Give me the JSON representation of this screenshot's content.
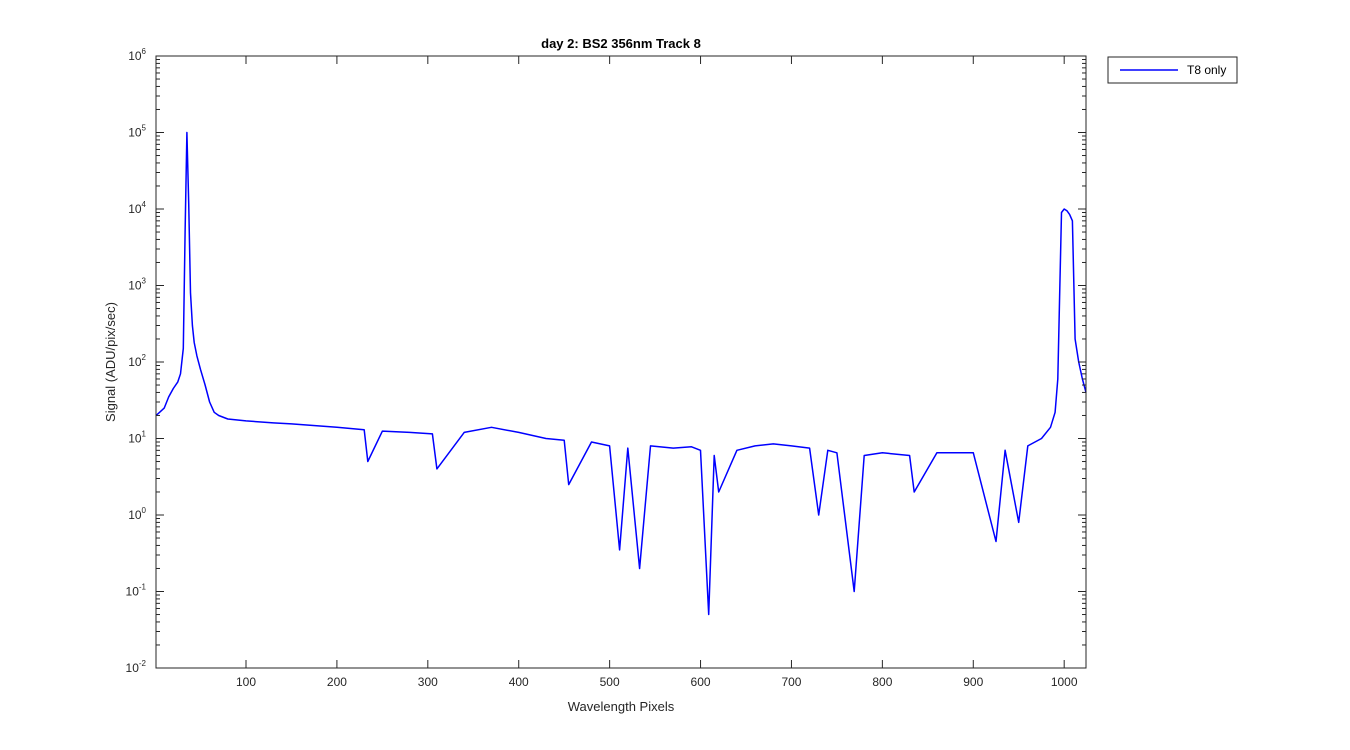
{
  "chart_data": {
    "type": "line",
    "title": "day 2: BS2  356nm  Track 8",
    "xlabel": "Wavelength Pixels",
    "ylabel": "Signal (ADU/pix/sec)",
    "xlim": [
      1,
      1024
    ],
    "ylim": [
      0.01,
      1000000
    ],
    "yscale": "log",
    "grid": false,
    "legend_position": "outside-top-right",
    "line_color": "#0000ff",
    "x_ticks": [
      100,
      200,
      300,
      400,
      500,
      600,
      700,
      800,
      900,
      1000
    ],
    "y_ticks": [
      {
        "value": 0.01,
        "base": "10",
        "exp": "-2"
      },
      {
        "value": 0.1,
        "base": "10",
        "exp": "-1"
      },
      {
        "value": 1,
        "base": "10",
        "exp": "0"
      },
      {
        "value": 10,
        "base": "10",
        "exp": "1"
      },
      {
        "value": 100,
        "base": "10",
        "exp": "2"
      },
      {
        "value": 1000,
        "base": "10",
        "exp": "3"
      },
      {
        "value": 10000,
        "base": "10",
        "exp": "4"
      },
      {
        "value": 100000,
        "base": "10",
        "exp": "5"
      },
      {
        "value": 1000000,
        "base": "10",
        "exp": "6"
      }
    ],
    "series": [
      {
        "name": "T8 only",
        "x": [
          1,
          5,
          10,
          15,
          20,
          25,
          28,
          31,
          33,
          35,
          37,
          39,
          41,
          43,
          46,
          50,
          55,
          60,
          65,
          70,
          80,
          100,
          130,
          150,
          200,
          230,
          234,
          250,
          280,
          305,
          310,
          340,
          370,
          400,
          430,
          450,
          455,
          480,
          500,
          511,
          520,
          533,
          545,
          570,
          590,
          600,
          609,
          615,
          620,
          640,
          660,
          680,
          700,
          720,
          730,
          740,
          750,
          769,
          780,
          800,
          830,
          835,
          860,
          900,
          925,
          935,
          950,
          960,
          975,
          985,
          990,
          993,
          995,
          997,
          1000,
          1003,
          1006,
          1009,
          1012,
          1016,
          1020,
          1024
        ],
        "y": [
          20,
          22,
          25,
          35,
          45,
          55,
          70,
          150,
          5000,
          100000,
          12000,
          800,
          300,
          180,
          120,
          80,
          50,
          30,
          22,
          20,
          18,
          17,
          16,
          15.5,
          14,
          13,
          5,
          12.5,
          12,
          11.5,
          4,
          12,
          14,
          12,
          10,
          9.5,
          2.5,
          9,
          8,
          0.35,
          7.5,
          0.2,
          8,
          7.5,
          7.8,
          7,
          0.05,
          6,
          2,
          7,
          8,
          8.5,
          8,
          7.5,
          1,
          7,
          6.5,
          0.1,
          6,
          6.5,
          6,
          2,
          6.5,
          6.5,
          0.45,
          7,
          0.8,
          8,
          10,
          14,
          22,
          60,
          700,
          9000,
          10000,
          9500,
          8500,
          7000,
          200,
          100,
          60,
          40
        ]
      }
    ]
  }
}
